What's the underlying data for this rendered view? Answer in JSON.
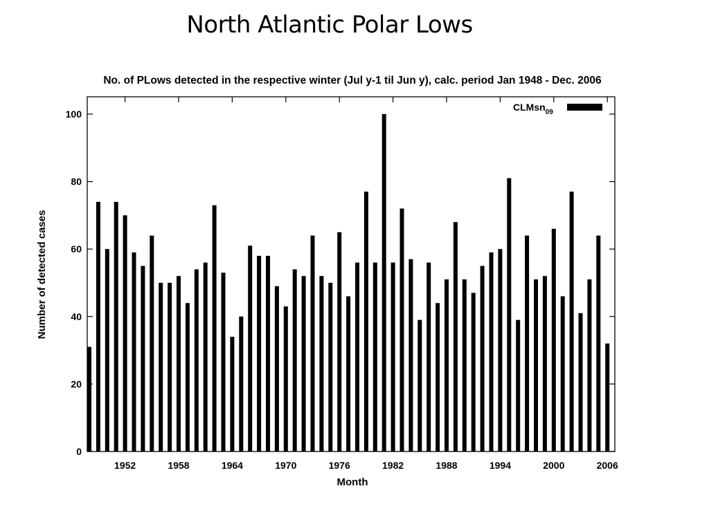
{
  "slide": {
    "title": "North Atlantic Polar Lows"
  },
  "chart_data": {
    "type": "bar",
    "subtitle": "No. of PLows detected in the respective winter (Jul y-1 til Jun y), calc. period Jan 1948 - Dec. 2006",
    "xlabel": "Month",
    "ylabel": "Number of detected cases",
    "ylim": [
      0,
      100
    ],
    "yticks": [
      0,
      20,
      40,
      60,
      80,
      100
    ],
    "xlim": [
      1948,
      2006
    ],
    "xticks": [
      1952,
      1958,
      1964,
      1970,
      1976,
      1982,
      1988,
      1994,
      2000,
      2006
    ],
    "legend": {
      "position": "top-right",
      "label": "CLMsn",
      "label_subscript": "09"
    },
    "bar_color": "#000000",
    "grid": false,
    "series": [
      {
        "x": [
          1948,
          1949,
          1950,
          1951,
          1952,
          1953,
          1954,
          1955,
          1956,
          1957,
          1958,
          1959,
          1960,
          1961,
          1962,
          1963,
          1964,
          1965,
          1966,
          1967,
          1968,
          1969,
          1970,
          1971,
          1972,
          1973,
          1974,
          1975,
          1976,
          1977,
          1978,
          1979,
          1980,
          1981,
          1982,
          1983,
          1984,
          1985,
          1986,
          1987,
          1988,
          1989,
          1990,
          1991,
          1992,
          1993,
          1994,
          1995,
          1996,
          1997,
          1998,
          1999,
          2000,
          2001,
          2002,
          2003,
          2004,
          2005,
          2006
        ],
        "values": [
          31,
          74,
          60,
          74,
          70,
          59,
          55,
          64,
          50,
          50,
          52,
          44,
          54,
          56,
          73,
          53,
          34,
          40,
          61,
          58,
          58,
          49,
          43,
          54,
          52,
          64,
          52,
          50,
          65,
          46,
          56,
          77,
          56,
          100,
          56,
          72,
          57,
          39,
          56,
          44,
          51,
          68,
          51,
          47,
          55,
          59,
          60,
          81,
          39,
          64,
          51,
          52,
          66,
          46,
          77,
          41,
          51,
          64,
          32
        ]
      }
    ]
  }
}
